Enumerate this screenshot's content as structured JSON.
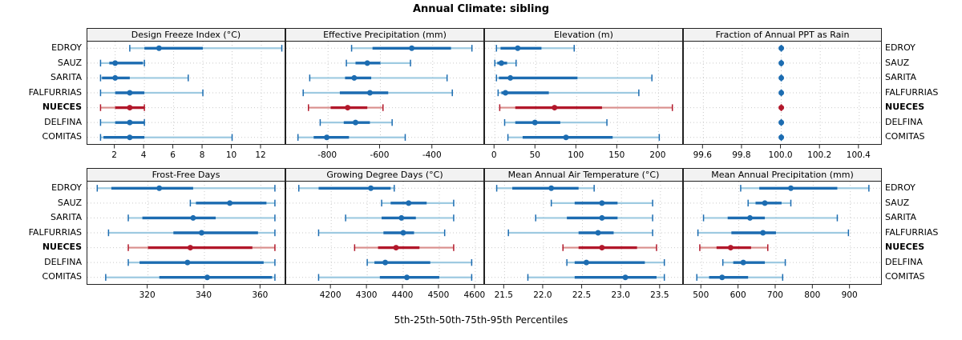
{
  "title": "Annual Climate: sibling",
  "caption": "5th-25th-50th-75th-95th Percentiles",
  "stations": [
    "EDROY",
    "SAUZ",
    "SARITA",
    "FALFURRIAS",
    "NUECES",
    "DELFINA",
    "COMITAS"
  ],
  "highlight_station": "NUECES",
  "percentiles": [
    "5th",
    "25th",
    "50th",
    "75th",
    "95th"
  ],
  "colors": {
    "dark_blue": "#1C6CB1",
    "light_blue": "#9ECAE1",
    "dark_red": "#B2182B",
    "light_red": "#D98E8C",
    "header_bg": "#F2F2F2",
    "border": "#222222",
    "grid": "#C9C9C9",
    "tick": "#222222"
  },
  "chart_data": {
    "type": "dotplot",
    "layout": "2x4 lattice of percentile dot-whisker panels; shared station y-axis; free x scales; dotted grid on",
    "panels": [
      {
        "title": "Design Freeze Index (°C)",
        "row": 0,
        "col": 0,
        "xlim": [
          0.1,
          13.7
        ],
        "ticks": [
          "2",
          "4",
          "6",
          "8",
          "10",
          "12"
        ],
        "values": {
          "EDROY": [
            3,
            4,
            5,
            8,
            13.4
          ],
          "SAUZ": [
            1,
            1.6,
            2,
            3.9,
            4
          ],
          "SARITA": [
            1,
            1.1,
            2,
            3,
            7
          ],
          "FALFURRIAS": [
            1,
            2,
            3,
            4,
            8
          ],
          "NUECES": [
            1,
            2,
            3,
            4,
            4
          ],
          "DELFINA": [
            1,
            2,
            3,
            4,
            4
          ],
          "COMITAS": [
            1,
            1.2,
            3,
            4,
            10
          ]
        }
      },
      {
        "title": "Effective Precipitation (mm)",
        "row": 0,
        "col": 1,
        "xlim": [
          -960,
          -200
        ],
        "ticks": [
          "-800",
          "-600",
          "-400"
        ],
        "values": {
          "EDROY": [
            -710,
            -630,
            -480,
            -330,
            -250
          ],
          "SAUZ": [
            -730,
            -695,
            -650,
            -600,
            -485
          ],
          "SARITA": [
            -870,
            -735,
            -700,
            -635,
            -345
          ],
          "FALFURRIAS": [
            -895,
            -755,
            -640,
            -570,
            -325
          ],
          "NUECES": [
            -875,
            -790,
            -725,
            -650,
            -590
          ],
          "DELFINA": [
            -830,
            -740,
            -695,
            -640,
            -555
          ],
          "COMITAS": [
            -915,
            -855,
            -805,
            -720,
            -505
          ]
        }
      },
      {
        "title": "Elevation (m)",
        "row": 0,
        "col": 2,
        "xlim": [
          -12,
          231
        ],
        "ticks": [
          "0",
          "50",
          "100",
          "150",
          "200"
        ],
        "values": {
          "EDROY": [
            2,
            7,
            28,
            57,
            97
          ],
          "SAUZ": [
            0,
            3,
            8,
            15,
            26
          ],
          "SARITA": [
            2,
            5,
            19,
            101,
            192
          ],
          "FALFURRIAS": [
            4,
            8,
            13,
            66,
            176
          ],
          "NUECES": [
            6,
            25,
            73,
            131,
            217
          ],
          "DELFINA": [
            12,
            25,
            49,
            80,
            137
          ],
          "COMITAS": [
            16,
            34,
            87,
            144,
            201
          ]
        }
      },
      {
        "title": "Fraction of Annual PPT as Rain",
        "row": 0,
        "col": 3,
        "xlim": [
          99.5,
          100.52
        ],
        "ticks": [
          "99.6",
          "99.8",
          "100.0",
          "100.2",
          "100.4"
        ],
        "values": {
          "EDROY": [
            100,
            100,
            100,
            100,
            100
          ],
          "SAUZ": [
            100,
            100,
            100,
            100,
            100
          ],
          "SARITA": [
            100,
            100,
            100,
            100,
            100
          ],
          "FALFURRIAS": [
            100,
            100,
            100,
            100,
            100
          ],
          "NUECES": [
            100,
            100,
            100,
            100,
            100
          ],
          "DELFINA": [
            100,
            100,
            100,
            100,
            100
          ],
          "COMITAS": [
            100,
            100,
            100,
            100,
            100
          ]
        }
      },
      {
        "title": "Frost-Free Days",
        "row": 1,
        "col": 0,
        "xlim": [
          298.5,
          369
        ],
        "ticks": [
          "320",
          "340",
          "360"
        ],
        "values": {
          "EDROY": [
            302,
            307,
            324,
            336,
            365
          ],
          "SAUZ": [
            335,
            337,
            349,
            362,
            365
          ],
          "SARITA": [
            313,
            318,
            336,
            344,
            365
          ],
          "FALFURRIAS": [
            306,
            329,
            339,
            359,
            365
          ],
          "NUECES": [
            313,
            320,
            335,
            357,
            365
          ],
          "DELFINA": [
            313,
            317,
            334,
            361,
            365
          ],
          "COMITAS": [
            305,
            324,
            341,
            364,
            365
          ]
        }
      },
      {
        "title": "Growing Degree Days (°C)",
        "row": 1,
        "col": 1,
        "xlim": [
          4075,
          4627
        ],
        "ticks": [
          "4200",
          "4300",
          "4400",
          "4500",
          "4600"
        ],
        "values": {
          "EDROY": [
            4110,
            4165,
            4310,
            4365,
            4375
          ],
          "SAUZ": [
            4340,
            4365,
            4415,
            4465,
            4540
          ],
          "SARITA": [
            4240,
            4340,
            4395,
            4435,
            4540
          ],
          "FALFURRIAS": [
            4165,
            4345,
            4400,
            4430,
            4515
          ],
          "NUECES": [
            4265,
            4330,
            4380,
            4445,
            4540
          ],
          "DELFINA": [
            4300,
            4320,
            4350,
            4475,
            4590
          ],
          "COMITAS": [
            4165,
            4335,
            4410,
            4500,
            4590
          ]
        }
      },
      {
        "title": "Mean Annual Air Temperature (°C)",
        "row": 1,
        "col": 2,
        "xlim": [
          21.25,
          23.8
        ],
        "ticks": [
          "21.5",
          "22.0",
          "22.5",
          "23.0",
          "23.5"
        ],
        "values": {
          "EDROY": [
            21.4,
            21.6,
            22.1,
            22.45,
            22.65
          ],
          "SAUZ": [
            22.1,
            22.4,
            22.75,
            22.95,
            23.4
          ],
          "SARITA": [
            21.9,
            22.3,
            22.75,
            22.95,
            23.4
          ],
          "FALFURRIAS": [
            21.55,
            22.45,
            22.7,
            22.9,
            23.4
          ],
          "NUECES": [
            22.25,
            22.45,
            22.75,
            23.2,
            23.45
          ],
          "DELFINA": [
            22.3,
            22.4,
            22.55,
            23.3,
            23.55
          ],
          "COMITAS": [
            21.8,
            22.4,
            23.05,
            23.45,
            23.55
          ]
        }
      },
      {
        "title": "Mean Annual Precipitation (mm)",
        "row": 1,
        "col": 3,
        "xlim": [
          452,
          987
        ],
        "ticks": [
          "500",
          "600",
          "700",
          "800",
          "900"
        ],
        "values": {
          "EDROY": [
            605,
            655,
            740,
            865,
            950
          ],
          "SAUZ": [
            625,
            645,
            670,
            715,
            740
          ],
          "SARITA": [
            505,
            570,
            630,
            670,
            865
          ],
          "FALFURRIAS": [
            490,
            580,
            665,
            700,
            895
          ],
          "NUECES": [
            495,
            540,
            578,
            633,
            678
          ],
          "DELFINA": [
            557,
            585,
            612,
            670,
            725
          ],
          "COMITAS": [
            487,
            520,
            555,
            625,
            718
          ]
        }
      }
    ]
  }
}
